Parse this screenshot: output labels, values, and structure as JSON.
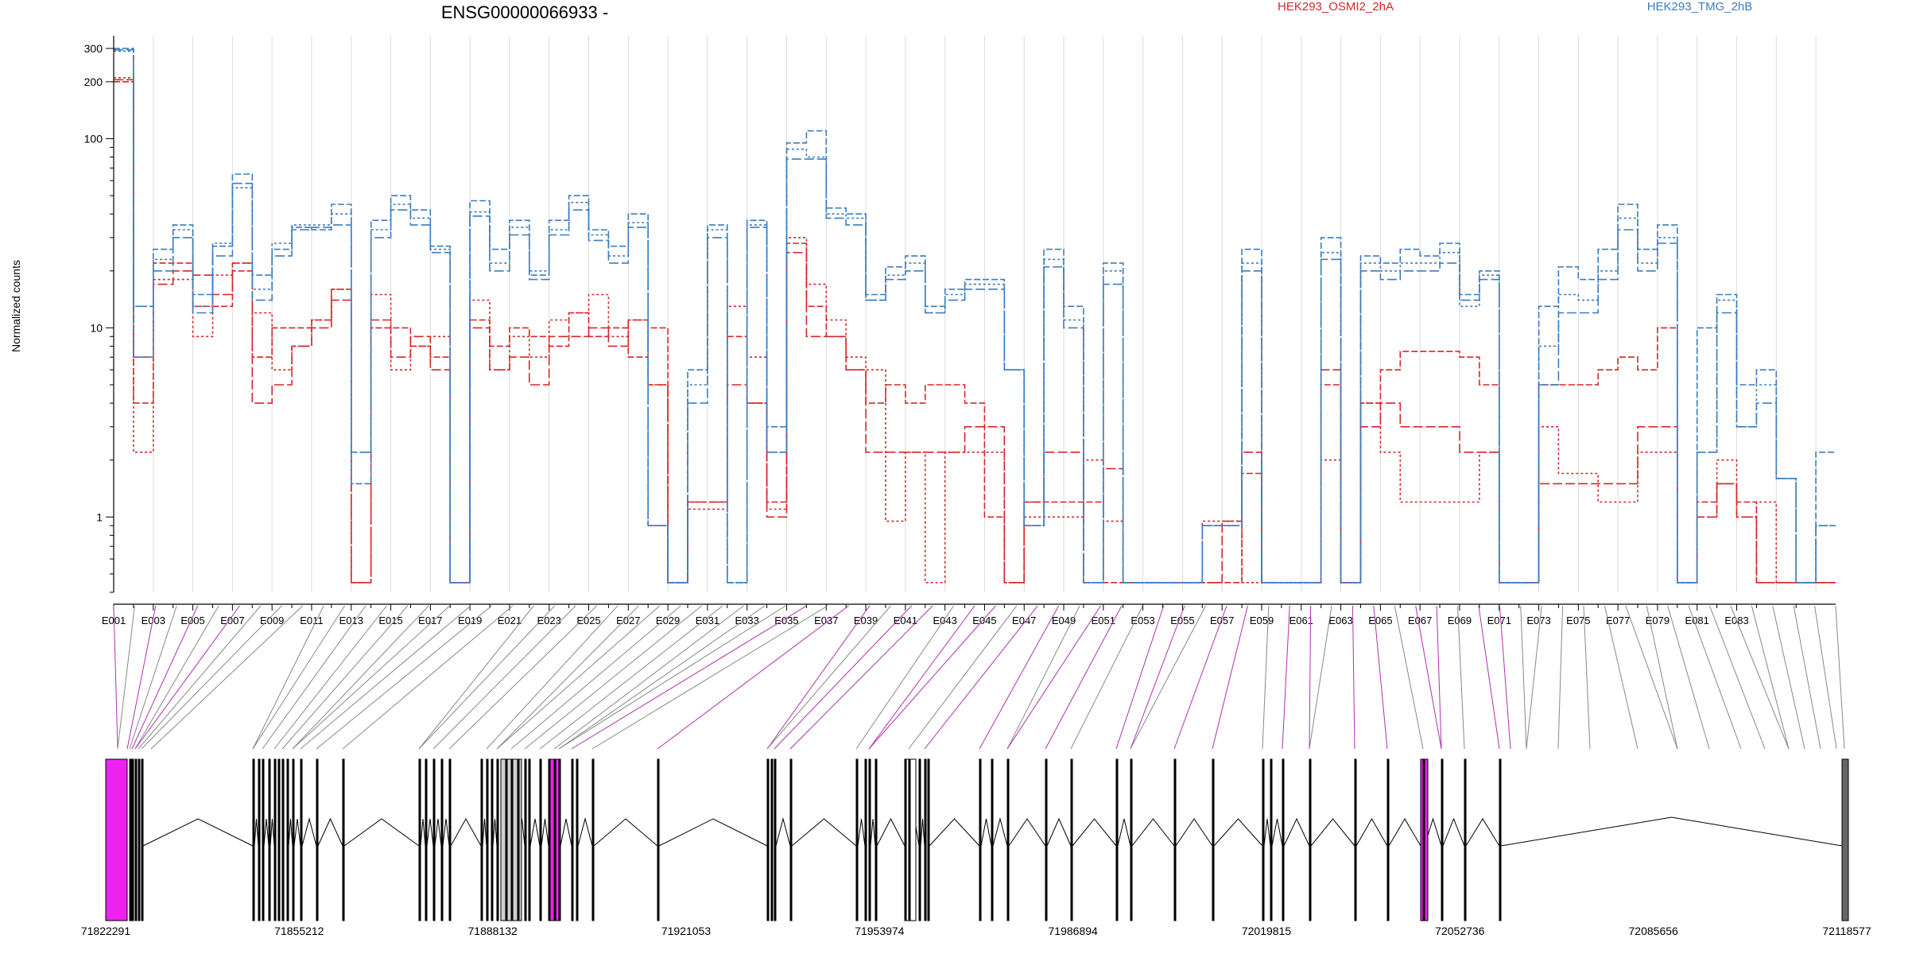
{
  "colors": {
    "osmi": "#d62728",
    "tmg": "#3a7dbf",
    "constitutive": "#000000",
    "connector_gray": "#888888",
    "connector_magenta": "#b030b0",
    "exon_magenta": "#ee22ee",
    "exon_gray": "#cfcfcf",
    "grid": "#dcdcdc"
  },
  "chart_data": {
    "type": "line",
    "title": "ENSG00000066933 -",
    "ylabel": "Normalized counts",
    "yscale": "log",
    "ylim": [
      0.4,
      350
    ],
    "yticks": [
      1,
      10,
      100,
      200,
      300
    ],
    "legend": [
      "HEK293_OSMI2_2hA",
      "HEK293_TMG_2hB"
    ],
    "legend_placement": "top",
    "grid": true,
    "exon_tick_labels": [
      "E001",
      "E003",
      "E005",
      "E007",
      "E009",
      "E011",
      "E013",
      "E015",
      "E017",
      "E019",
      "E021",
      "E023",
      "E025",
      "E027",
      "E029",
      "E031",
      "E033",
      "E035",
      "E037",
      "E039",
      "E041",
      "E043",
      "E045",
      "E047",
      "E049",
      "E051",
      "E053",
      "E055",
      "E057",
      "E059",
      "E061",
      "E063",
      "E065",
      "E067",
      "E069",
      "E071",
      "E073",
      "E075",
      "E077",
      "E079",
      "E081",
      "E083"
    ],
    "series": [
      {
        "name": "HEK293_OSMI2_2hA",
        "group": "osmi",
        "dash": "8,3",
        "values": [
          200,
          4,
          22,
          22,
          13,
          13,
          20,
          7,
          10,
          10,
          11,
          16,
          0.45,
          10,
          10,
          8,
          7,
          0.45,
          11,
          8,
          10,
          9,
          8,
          12,
          9,
          10,
          7,
          10,
          0.45,
          1.2,
          1.2,
          9,
          4,
          1.2,
          28,
          13,
          9,
          6,
          4,
          5,
          4,
          5,
          5,
          4,
          1,
          0.45,
          1.2,
          1.2,
          1.2,
          1.2,
          0.45,
          0.45,
          0.45,
          0.45,
          0.45,
          0.45,
          0.45,
          1.7,
          0.45,
          0.45,
          0.45,
          5,
          0.45,
          4,
          6,
          7.5,
          7.5,
          7.5,
          7,
          5,
          0.45,
          0.45,
          5,
          5,
          5,
          6,
          7,
          6,
          10,
          0.45,
          1.2,
          1.5,
          1.2,
          0.45,
          0.45,
          0.45,
          0.45
        ]
      },
      {
        "name": "HEK293_OSMI2_2hA",
        "group": "osmi",
        "dash": "3,3",
        "values": [
          210,
          2.2,
          18,
          18,
          9,
          19,
          22,
          12,
          6,
          8,
          11,
          16,
          0.45,
          15,
          6,
          8,
          9,
          0.45,
          14,
          6,
          9,
          7,
          11,
          12,
          15,
          9,
          11,
          5,
          0.45,
          1.1,
          1.1,
          13,
          7,
          1.1,
          30,
          17,
          11,
          7,
          6,
          0.95,
          2.2,
          0.45,
          2.2,
          2.2,
          2.2,
          0.45,
          1,
          1,
          1,
          2,
          0.95,
          0.45,
          0.45,
          0.45,
          0.45,
          0.95,
          0.95,
          0.45,
          0.45,
          0.45,
          0.45,
          2,
          0.45,
          4,
          2.2,
          1.2,
          1.2,
          1.2,
          1.2,
          2.2,
          0.45,
          0.45,
          3,
          1.7,
          1.7,
          1.2,
          1.2,
          2.2,
          2.2,
          0.45,
          1,
          2,
          1,
          1.2,
          0.45,
          0.45,
          0.45
        ]
      },
      {
        "name": "HEK293_OSMI2_2hA",
        "group": "osmi",
        "dash": "12,4",
        "values": [
          205,
          7,
          17,
          20,
          19,
          15,
          22,
          4,
          5,
          8,
          10,
          14,
          0.45,
          11,
          7,
          9,
          6,
          0.45,
          10,
          6,
          7,
          5,
          9,
          9,
          10,
          8,
          11,
          5,
          0.45,
          1.2,
          1.2,
          5,
          4,
          1,
          25,
          9,
          9,
          6,
          2.2,
          2.2,
          2.2,
          2.2,
          2.2,
          3,
          3,
          0.45,
          1.2,
          2.2,
          2.2,
          0.45,
          1.8,
          0.45,
          0.45,
          0.45,
          0.45,
          0.45,
          0.95,
          2.2,
          0.45,
          0.45,
          0.45,
          6,
          0.45,
          3,
          4,
          3,
          3,
          3,
          2.2,
          2.2,
          0.45,
          0.45,
          1.5,
          1.5,
          1.5,
          1.5,
          1.5,
          3,
          3,
          0.45,
          1,
          1.5,
          1,
          0.45,
          0.45,
          0.45,
          0.45
        ]
      },
      {
        "name": "HEK293_TMG_2hB",
        "group": "tmg",
        "dash": "8,3",
        "values": [
          300,
          7,
          26,
          35,
          15,
          27,
          65,
          19,
          26,
          34,
          33,
          45,
          1.5,
          37,
          50,
          42,
          27,
          0.45,
          47,
          26,
          37,
          19,
          37,
          50,
          33,
          27,
          40,
          0.9,
          0.45,
          6,
          35,
          0.45,
          37,
          3,
          95,
          110,
          43,
          40,
          15,
          21,
          24,
          13,
          16,
          18,
          18,
          6,
          0.9,
          26,
          13,
          0.45,
          22,
          0.45,
          0.45,
          0.45,
          0.45,
          0.9,
          0.9,
          26,
          0.45,
          0.45,
          0.45,
          30,
          0.45,
          24,
          22,
          26,
          24,
          28,
          15,
          20,
          0.45,
          0.45,
          13,
          21,
          18,
          26,
          45,
          26,
          35,
          0.45,
          10,
          15,
          5,
          6,
          1.6,
          0.45,
          2.2
        ]
      },
      {
        "name": "HEK293_TMG_2hB",
        "group": "tmg",
        "dash": "3,3",
        "values": [
          290,
          13,
          23,
          33,
          13,
          28,
          55,
          16,
          28,
          35,
          35,
          40,
          2.2,
          33,
          45,
          38,
          26,
          0.45,
          41,
          22,
          34,
          20,
          33,
          46,
          31,
          24,
          36,
          0.9,
          0.45,
          5,
          33,
          0.45,
          35,
          2.2,
          88,
          80,
          40,
          38,
          14,
          19,
          22,
          12,
          15,
          17,
          17,
          6,
          0.9,
          23,
          11,
          0.45,
          20,
          0.45,
          0.45,
          0.45,
          0.45,
          0.9,
          0.9,
          22,
          0.45,
          0.45,
          0.45,
          25,
          0.45,
          22,
          20,
          22,
          22,
          25,
          13,
          19,
          0.45,
          0.45,
          8,
          15,
          14,
          20,
          38,
          22,
          30,
          0.45,
          2.2,
          14,
          3,
          5,
          1.6,
          0.45,
          0.9
        ]
      },
      {
        "name": "HEK293_TMG_2hB",
        "group": "tmg",
        "dash": "12,4",
        "values": [
          295,
          13,
          20,
          30,
          12,
          24,
          58,
          14,
          24,
          33,
          34,
          35,
          2.2,
          30,
          42,
          35,
          25,
          0.45,
          39,
          20,
          31,
          18,
          31,
          42,
          29,
          22,
          34,
          0.9,
          0.45,
          4,
          30,
          0.45,
          34,
          2.2,
          78,
          78,
          38,
          35,
          14,
          18,
          20,
          12,
          14,
          16,
          16,
          6,
          0.9,
          21,
          10,
          0.45,
          17,
          0.45,
          0.45,
          0.45,
          0.45,
          0.9,
          0.9,
          20,
          0.45,
          0.45,
          0.45,
          23,
          0.45,
          20,
          18,
          20,
          20,
          22,
          14,
          18,
          0.45,
          0.45,
          5,
          12,
          12,
          18,
          33,
          20,
          28,
          0.45,
          2.2,
          12,
          3,
          4,
          1.6,
          0.45,
          0.9
        ]
      }
    ],
    "gene_coordinate_labels": [
      "71822291",
      "71855212",
      "71888132",
      "71921053",
      "71953974",
      "71986894",
      "72019815",
      "72052736",
      "72085656",
      "72118577"
    ]
  }
}
